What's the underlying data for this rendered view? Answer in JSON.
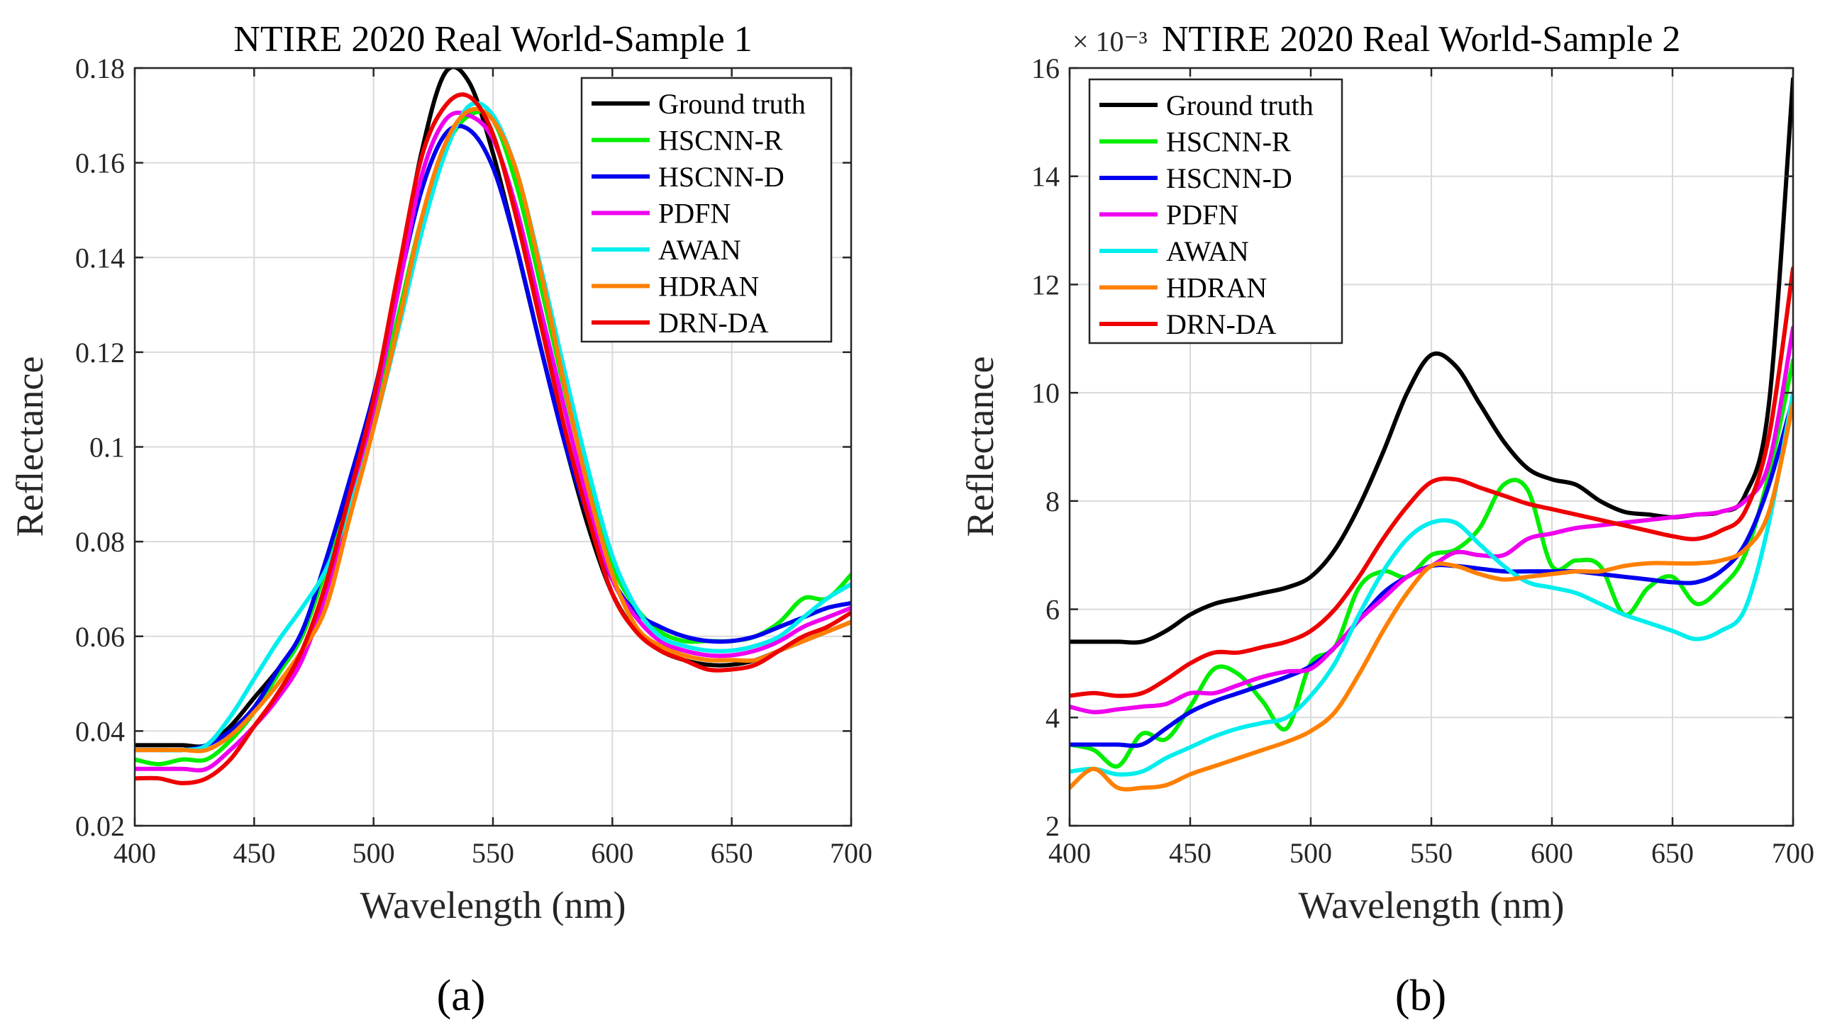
{
  "chart_data": [
    {
      "type": "line",
      "title": "NTIRE 2020 Real World-Sample 1",
      "xlabel": "Wavelength (nm)",
      "ylabel": "Reflectance",
      "xlim": [
        400,
        700
      ],
      "ylim": [
        0.02,
        0.18
      ],
      "exponent_label": "",
      "xticks": [
        "400",
        "450",
        "500",
        "550",
        "600",
        "650",
        "700"
      ],
      "yticks": [
        "0.02",
        "0.04",
        "0.06",
        "0.08",
        "0.1",
        "0.12",
        "0.14",
        "0.16",
        "0.18"
      ],
      "x": [
        400,
        410,
        420,
        430,
        440,
        450,
        460,
        470,
        480,
        490,
        500,
        510,
        520,
        530,
        540,
        550,
        560,
        570,
        580,
        590,
        600,
        610,
        620,
        630,
        640,
        650,
        660,
        670,
        680,
        690,
        700
      ],
      "legend_location": "top-right",
      "panel_label": "(a)",
      "series": [
        {
          "name": "Ground truth",
          "color": "#000000",
          "values": [
            0.037,
            0.037,
            0.037,
            0.037,
            0.041,
            0.047,
            0.053,
            0.06,
            0.075,
            0.092,
            0.11,
            0.135,
            0.162,
            0.179,
            0.177,
            0.162,
            0.142,
            0.121,
            0.101,
            0.083,
            0.069,
            0.061,
            0.057,
            0.055,
            0.054,
            0.054,
            0.055,
            0.057,
            0.059,
            0.061,
            0.063
          ]
        },
        {
          "name": "HSCNN-R",
          "color": "#00ee00",
          "values": [
            0.034,
            0.033,
            0.034,
            0.034,
            0.038,
            0.044,
            0.052,
            0.06,
            0.074,
            0.089,
            0.107,
            0.127,
            0.148,
            0.163,
            0.17,
            0.169,
            0.155,
            0.134,
            0.112,
            0.092,
            0.075,
            0.066,
            0.061,
            0.059,
            0.059,
            0.059,
            0.06,
            0.063,
            0.068,
            0.068,
            0.073
          ]
        },
        {
          "name": "HSCNN-D",
          "color": "#0000ee",
          "values": [
            0.036,
            0.036,
            0.036,
            0.037,
            0.04,
            0.045,
            0.053,
            0.061,
            0.076,
            0.093,
            0.111,
            0.133,
            0.154,
            0.166,
            0.167,
            0.159,
            0.142,
            0.121,
            0.101,
            0.085,
            0.072,
            0.065,
            0.062,
            0.06,
            0.059,
            0.059,
            0.06,
            0.062,
            0.064,
            0.066,
            0.067
          ]
        },
        {
          "name": "PDFN",
          "color": "#ee00ee",
          "values": [
            0.032,
            0.032,
            0.032,
            0.032,
            0.036,
            0.041,
            0.047,
            0.055,
            0.069,
            0.088,
            0.108,
            0.132,
            0.157,
            0.169,
            0.17,
            0.165,
            0.15,
            0.129,
            0.108,
            0.088,
            0.072,
            0.064,
            0.059,
            0.057,
            0.056,
            0.056,
            0.057,
            0.059,
            0.062,
            0.064,
            0.066
          ]
        },
        {
          "name": "AWAN",
          "color": "#00eeee",
          "values": [
            0.036,
            0.036,
            0.036,
            0.037,
            0.043,
            0.051,
            0.059,
            0.066,
            0.074,
            0.087,
            0.104,
            0.124,
            0.145,
            0.162,
            0.172,
            0.17,
            0.158,
            0.138,
            0.116,
            0.095,
            0.077,
            0.066,
            0.06,
            0.058,
            0.057,
            0.057,
            0.058,
            0.06,
            0.064,
            0.068,
            0.071
          ]
        },
        {
          "name": "HDRAN",
          "color": "#ff8000",
          "values": [
            0.036,
            0.036,
            0.036,
            0.036,
            0.039,
            0.044,
            0.05,
            0.057,
            0.066,
            0.085,
            0.104,
            0.125,
            0.148,
            0.164,
            0.171,
            0.169,
            0.158,
            0.137,
            0.113,
            0.091,
            0.073,
            0.062,
            0.058,
            0.056,
            0.055,
            0.055,
            0.055,
            0.057,
            0.059,
            0.061,
            0.063
          ]
        },
        {
          "name": "DRN-DA",
          "color": "#ee0000",
          "values": [
            0.03,
            0.03,
            0.029,
            0.03,
            0.034,
            0.041,
            0.048,
            0.057,
            0.071,
            0.09,
            0.11,
            0.136,
            0.161,
            0.172,
            0.174,
            0.166,
            0.148,
            0.126,
            0.104,
            0.085,
            0.069,
            0.061,
            0.057,
            0.055,
            0.053,
            0.053,
            0.054,
            0.057,
            0.06,
            0.062,
            0.065
          ]
        }
      ]
    },
    {
      "type": "line",
      "title": "NTIRE 2020 Real World-Sample 2",
      "xlabel": "Wavelength (nm)",
      "ylabel": "Reflectance",
      "xlim": [
        400,
        700
      ],
      "ylim": [
        2,
        16
      ],
      "exponent_label": "× 10⁻³",
      "xticks": [
        "400",
        "450",
        "500",
        "550",
        "600",
        "650",
        "700"
      ],
      "yticks": [
        "2",
        "4",
        "6",
        "8",
        "10",
        "12",
        "14",
        "16"
      ],
      "x": [
        400,
        410,
        420,
        430,
        440,
        450,
        460,
        470,
        480,
        490,
        500,
        510,
        520,
        530,
        540,
        550,
        560,
        570,
        580,
        590,
        600,
        610,
        620,
        630,
        640,
        650,
        660,
        670,
        680,
        690,
        700
      ],
      "legend_location": "top-left",
      "panel_label": "(b)",
      "series": [
        {
          "name": "Ground truth",
          "color": "#000000",
          "values": [
            5.4,
            5.4,
            5.4,
            5.4,
            5.6,
            5.9,
            6.1,
            6.2,
            6.3,
            6.4,
            6.6,
            7.1,
            7.9,
            8.9,
            10.0,
            10.7,
            10.5,
            9.8,
            9.1,
            8.6,
            8.4,
            8.3,
            8.0,
            7.8,
            7.75,
            7.7,
            7.75,
            7.8,
            8.1,
            9.8,
            15.8
          ]
        },
        {
          "name": "HSCNN-R",
          "color": "#00ee00",
          "values": [
            3.5,
            3.4,
            3.1,
            3.7,
            3.6,
            4.2,
            4.9,
            4.8,
            4.3,
            3.8,
            5.0,
            5.3,
            6.4,
            6.7,
            6.6,
            7.0,
            7.1,
            7.5,
            8.3,
            8.2,
            6.8,
            6.9,
            6.8,
            5.9,
            6.4,
            6.6,
            6.1,
            6.4,
            7.0,
            8.5,
            10.6
          ]
        },
        {
          "name": "HSCNN-D",
          "color": "#0000ee",
          "values": [
            3.5,
            3.5,
            3.5,
            3.5,
            3.8,
            4.1,
            4.3,
            4.45,
            4.6,
            4.75,
            4.95,
            5.3,
            5.8,
            6.3,
            6.6,
            6.8,
            6.8,
            6.75,
            6.7,
            6.7,
            6.7,
            6.7,
            6.65,
            6.6,
            6.55,
            6.5,
            6.5,
            6.7,
            7.2,
            8.3,
            9.9
          ]
        },
        {
          "name": "PDFN",
          "color": "#ee00ee",
          "values": [
            4.2,
            4.1,
            4.15,
            4.2,
            4.25,
            4.45,
            4.45,
            4.6,
            4.75,
            4.85,
            4.9,
            5.3,
            5.8,
            6.2,
            6.6,
            6.8,
            7.05,
            7.0,
            7.0,
            7.3,
            7.4,
            7.5,
            7.55,
            7.6,
            7.65,
            7.7,
            7.75,
            7.8,
            8.0,
            8.7,
            11.2
          ]
        },
        {
          "name": "AWAN",
          "color": "#00eeee",
          "values": [
            3.0,
            3.05,
            2.95,
            3.0,
            3.25,
            3.45,
            3.65,
            3.8,
            3.9,
            4.0,
            4.4,
            5.0,
            5.9,
            6.7,
            7.3,
            7.6,
            7.6,
            7.2,
            6.8,
            6.5,
            6.4,
            6.3,
            6.1,
            5.9,
            5.75,
            5.6,
            5.45,
            5.6,
            6.0,
            7.6,
            10.0
          ]
        },
        {
          "name": "HDRAN",
          "color": "#ff8000",
          "values": [
            2.7,
            3.05,
            2.7,
            2.7,
            2.75,
            2.95,
            3.1,
            3.25,
            3.4,
            3.55,
            3.75,
            4.1,
            4.8,
            5.6,
            6.3,
            6.8,
            6.8,
            6.65,
            6.55,
            6.6,
            6.65,
            6.7,
            6.7,
            6.8,
            6.85,
            6.85,
            6.85,
            6.9,
            7.1,
            7.8,
            9.8
          ]
        },
        {
          "name": "DRN-DA",
          "color": "#ee0000",
          "values": [
            4.4,
            4.45,
            4.4,
            4.45,
            4.7,
            5.0,
            5.2,
            5.2,
            5.3,
            5.4,
            5.6,
            6.0,
            6.6,
            7.3,
            7.9,
            8.35,
            8.4,
            8.25,
            8.1,
            7.95,
            7.85,
            7.75,
            7.65,
            7.55,
            7.45,
            7.35,
            7.3,
            7.45,
            7.8,
            9.2,
            12.3
          ]
        }
      ]
    }
  ]
}
